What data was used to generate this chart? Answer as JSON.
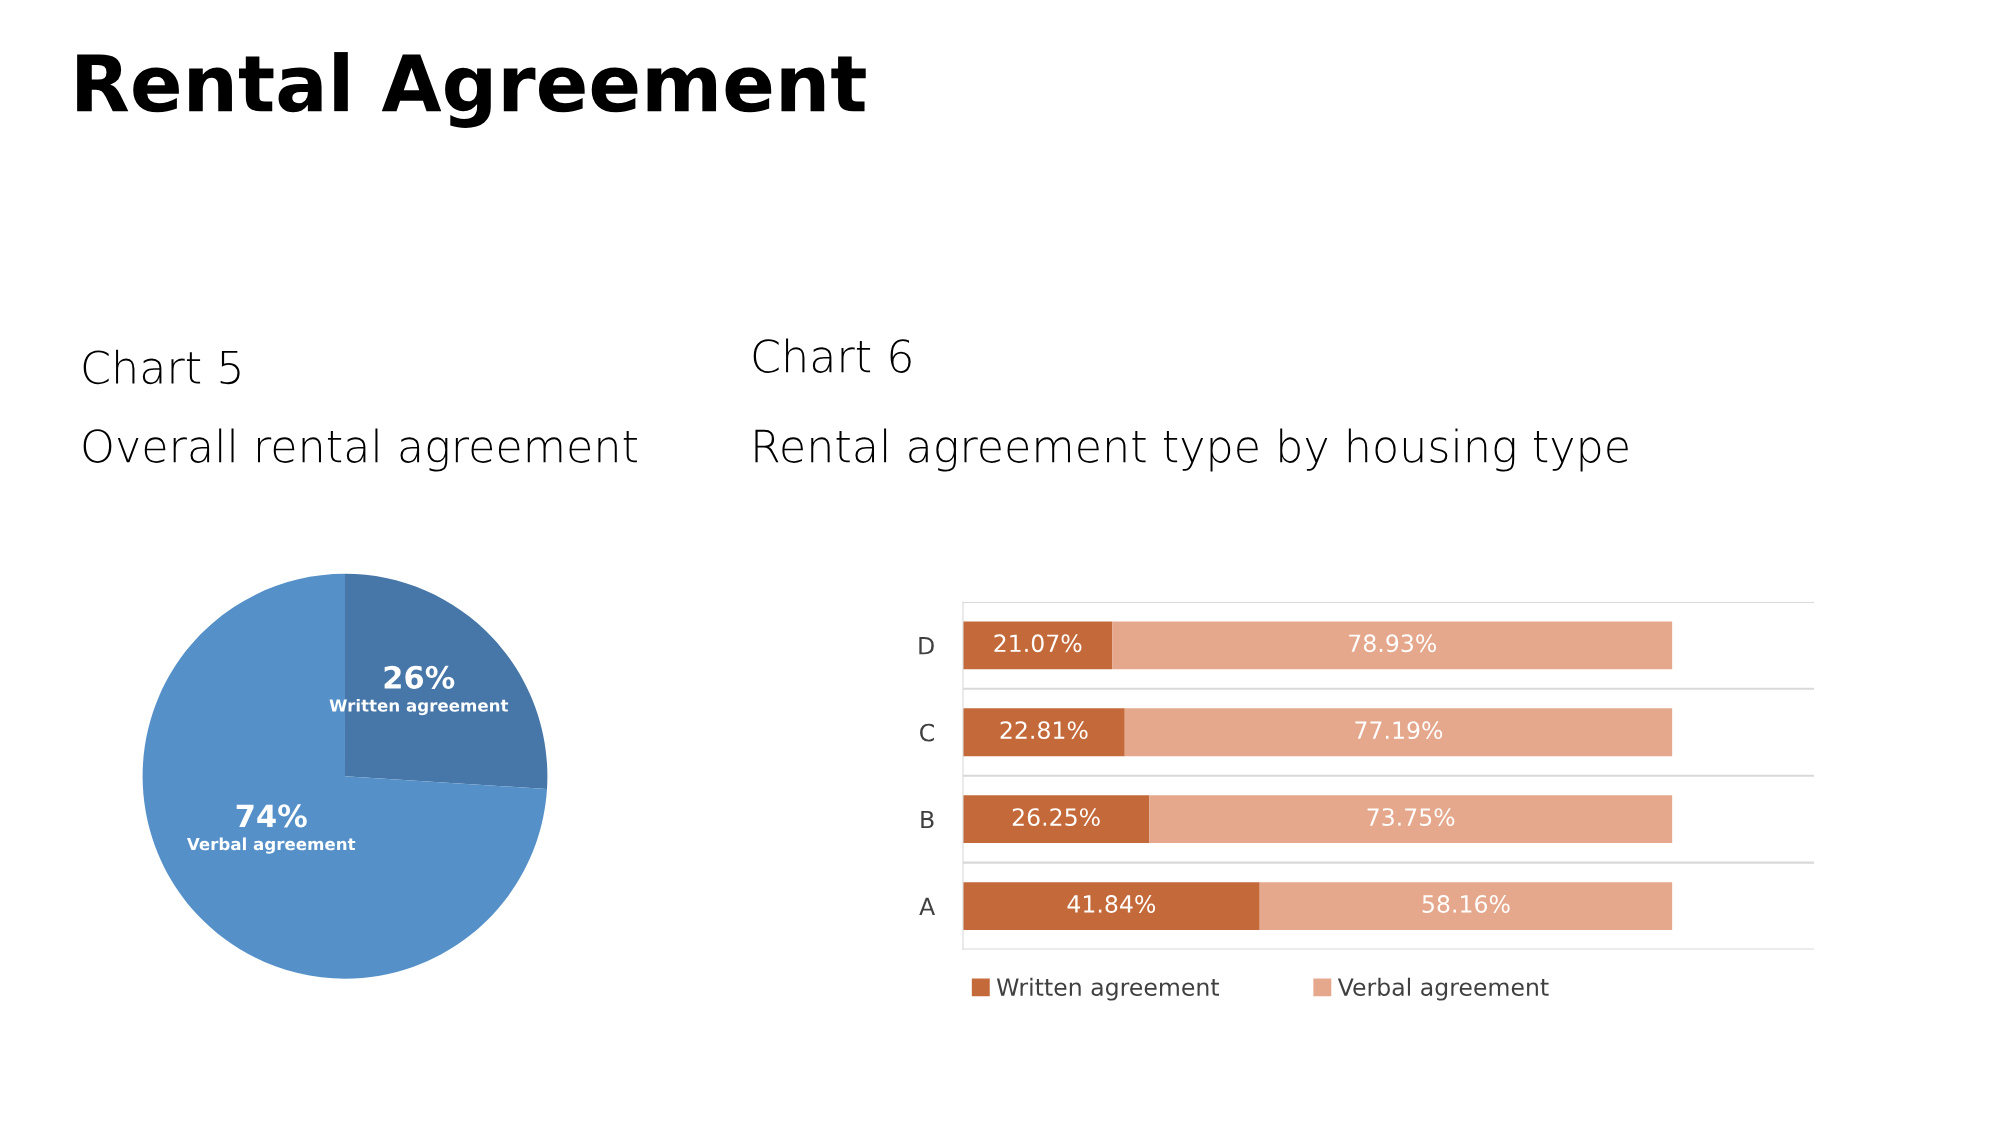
{
  "chart_data": [
    {
      "type": "pie",
      "title": "Chart 5",
      "subtitle": "Overall rental agreement",
      "annotations": [
        "Rental Agreement"
      ],
      "categories": [
        "Written agreement",
        "Verbal agreement"
      ],
      "values": [
        26,
        74
      ],
      "value_labels": [
        "26%",
        "74%"
      ],
      "colors": [
        "#4677a8",
        "#5591c8"
      ]
    },
    {
      "type": "bar",
      "title": "Chart 6",
      "subtitle": "Rental agreement type by housing type",
      "orientation": "horizontal",
      "stacked": true,
      "categories": [
        "D",
        "C",
        "B",
        "A"
      ],
      "tick_labels": "y",
      "legend": "bottom",
      "series": [
        {
          "name": "Written agreement",
          "color": "#c46a3a",
          "values": [
            21.07,
            22.81,
            26.25,
            41.84
          ],
          "value_labels": [
            "21.07%",
            "22.81%",
            "26.25%",
            "41.84%"
          ]
        },
        {
          "name": "Verbal agreement",
          "color": "#e5a88c",
          "values": [
            78.93,
            77.19,
            73.75,
            58.16
          ],
          "value_labels": [
            "78.93%",
            "77.19%",
            "73.75%",
            "58.16%"
          ]
        }
      ]
    }
  ]
}
